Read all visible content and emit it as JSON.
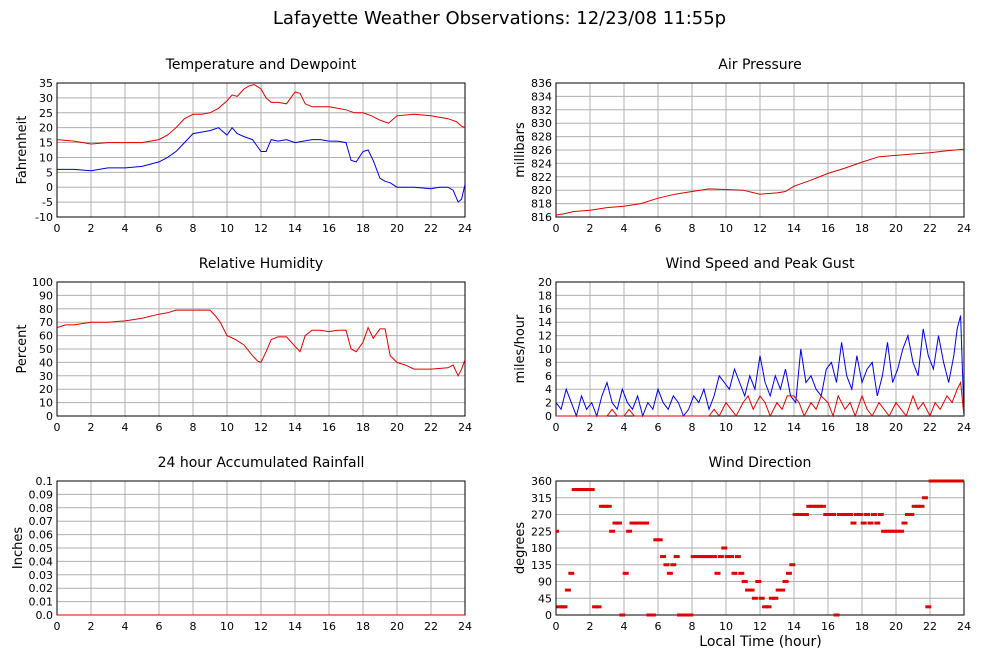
{
  "page": {
    "title": "Lafayette Weather Observations: 12/23/08 11:55p",
    "x_axis_label": "Local Time (hour)"
  },
  "colors": {
    "red": "#e00000",
    "blue": "#0000e0",
    "grid": "#b0b0b0"
  },
  "chart_data": [
    {
      "id": "temperature-dewpoint",
      "type": "line",
      "title": "Temperature and Dewpoint",
      "ylabel": "Fahrenheit",
      "xlim": [
        0,
        24
      ],
      "ylim": [
        -10,
        35
      ],
      "xticks": [
        0,
        2,
        4,
        6,
        8,
        10,
        12,
        14,
        16,
        18,
        20,
        22,
        24
      ],
      "yticks": [
        -10,
        -5,
        0,
        5,
        10,
        15,
        20,
        25,
        30,
        35
      ],
      "grid": true,
      "series": [
        {
          "color": "red",
          "x": [
            0,
            1,
            2,
            3,
            4,
            5,
            6,
            6.5,
            7,
            7.5,
            8,
            8.5,
            9,
            9.5,
            10,
            10.3,
            10.6,
            11,
            11.3,
            11.6,
            12,
            12.3,
            12.6,
            13,
            13.5,
            14,
            14.3,
            14.6,
            15,
            15.5,
            16,
            16.5,
            17,
            17.5,
            18,
            18.5,
            19,
            19.5,
            20,
            21,
            22,
            22.5,
            23,
            23.5,
            23.8,
            24
          ],
          "y": [
            16,
            15.5,
            14.5,
            15,
            15,
            15,
            16,
            17.5,
            20,
            23,
            24.5,
            24.5,
            25,
            26.5,
            29,
            31,
            30.5,
            33,
            34,
            34.5,
            33,
            30,
            28.5,
            28.5,
            28,
            32,
            31.5,
            28,
            27,
            27,
            27,
            26.5,
            26,
            25,
            25,
            24,
            22.5,
            21.5,
            24,
            24.5,
            24,
            23.5,
            23,
            22,
            20.5,
            20
          ]
        },
        {
          "color": "blue",
          "x": [
            0,
            1,
            2,
            3,
            4,
            5,
            6,
            6.5,
            7,
            7.5,
            8,
            8.5,
            9,
            9.5,
            10,
            10.3,
            10.6,
            11,
            11.5,
            12,
            12.3,
            12.6,
            13,
            13.5,
            14,
            14.5,
            15,
            15.5,
            16,
            16.5,
            17,
            17.3,
            17.6,
            18,
            18.3,
            18.6,
            19,
            19.3,
            19.6,
            20,
            21,
            22,
            22.5,
            23,
            23.3,
            23.6,
            23.8,
            24
          ],
          "y": [
            6,
            6,
            5.5,
            6.5,
            6.5,
            7,
            8.5,
            10,
            12,
            15,
            18,
            18.5,
            19,
            20,
            17.5,
            20,
            18,
            17,
            16,
            12,
            12,
            16,
            15.5,
            16,
            15,
            15.5,
            16,
            16,
            15.5,
            15.5,
            15,
            9,
            8.5,
            12,
            12.5,
            9,
            3,
            2,
            1.5,
            0,
            0,
            -0.5,
            0,
            0,
            -1,
            -5,
            -4,
            1
          ]
        }
      ]
    },
    {
      "id": "air-pressure",
      "type": "line",
      "title": "Air Pressure",
      "ylabel": "millibars",
      "xlim": [
        0,
        24
      ],
      "ylim": [
        816,
        836
      ],
      "xticks": [
        0,
        2,
        4,
        6,
        8,
        10,
        12,
        14,
        16,
        18,
        20,
        22,
        24
      ],
      "yticks": [
        816,
        818,
        820,
        822,
        824,
        826,
        828,
        830,
        832,
        834,
        836
      ],
      "grid": true,
      "series": [
        {
          "color": "red",
          "x": [
            0,
            0.5,
            1,
            2,
            3,
            4,
            5,
            6,
            7,
            8,
            9,
            10,
            11,
            12,
            13,
            13.5,
            14,
            15,
            16,
            17,
            18,
            19,
            20,
            21,
            22,
            23,
            24
          ],
          "y": [
            816.3,
            816.5,
            816.8,
            817,
            817.4,
            817.6,
            818,
            818.8,
            819.4,
            819.8,
            820.2,
            820.1,
            820,
            819.4,
            819.6,
            819.8,
            820.6,
            821.5,
            822.5,
            823.3,
            824.2,
            825,
            825.2,
            825.4,
            825.6,
            825.9,
            826.1
          ]
        }
      ]
    },
    {
      "id": "relative-humidity",
      "type": "line",
      "title": "Relative Humidity",
      "ylabel": "Percent",
      "xlim": [
        0,
        24
      ],
      "ylim": [
        0,
        100
      ],
      "xticks": [
        0,
        2,
        4,
        6,
        8,
        10,
        12,
        14,
        16,
        18,
        20,
        22,
        24
      ],
      "yticks": [
        0,
        10,
        20,
        30,
        40,
        50,
        60,
        70,
        80,
        90,
        100
      ],
      "grid": true,
      "series": [
        {
          "color": "red",
          "x": [
            0,
            0.5,
            1,
            2,
            3,
            4,
            5,
            6,
            6.5,
            7,
            7.5,
            8,
            8.5,
            9,
            9.3,
            9.6,
            10,
            10.5,
            11,
            11.5,
            11.8,
            12,
            12.3,
            12.6,
            13,
            13.5,
            14,
            14.3,
            14.6,
            15,
            15.5,
            16,
            16.5,
            17,
            17.3,
            17.6,
            18,
            18.3,
            18.6,
            19,
            19.3,
            19.6,
            20,
            20.5,
            21,
            22,
            23,
            23.3,
            23.6,
            23.8,
            24
          ],
          "y": [
            66,
            68,
            68,
            70,
            70,
            71,
            73,
            76,
            77,
            79,
            79,
            79,
            79,
            79,
            75,
            70,
            60,
            57,
            53,
            45,
            41,
            40,
            48,
            57,
            59,
            59,
            52,
            48,
            60,
            64,
            64,
            63,
            64,
            64,
            50,
            48,
            55,
            66,
            58,
            65,
            65,
            45,
            40,
            38,
            35,
            35,
            36,
            38,
            30,
            35,
            42
          ]
        }
      ]
    },
    {
      "id": "wind-speed-gust",
      "type": "line",
      "title": "Wind Speed and Peak Gust",
      "ylabel": "miles/hour",
      "xlim": [
        0,
        24
      ],
      "ylim": [
        0,
        20
      ],
      "xticks": [
        0,
        2,
        4,
        6,
        8,
        10,
        12,
        14,
        16,
        18,
        20,
        22,
        24
      ],
      "yticks": [
        0,
        2,
        4,
        6,
        8,
        10,
        12,
        14,
        16,
        18,
        20
      ],
      "grid": true,
      "series": [
        {
          "color": "blue",
          "x": [
            0,
            0.3,
            0.6,
            0.9,
            1.2,
            1.5,
            1.8,
            2.1,
            2.4,
            2.7,
            3,
            3.3,
            3.6,
            3.9,
            4.2,
            4.5,
            4.8,
            5.1,
            5.4,
            5.7,
            6,
            6.3,
            6.6,
            6.9,
            7.2,
            7.5,
            7.8,
            8.1,
            8.4,
            8.7,
            9,
            9.3,
            9.6,
            9.9,
            10.2,
            10.5,
            10.8,
            11.1,
            11.4,
            11.7,
            12,
            12.3,
            12.6,
            12.9,
            13.2,
            13.5,
            13.8,
            14.1,
            14.4,
            14.7,
            15,
            15.3,
            15.6,
            15.9,
            16.2,
            16.5,
            16.8,
            17.1,
            17.4,
            17.7,
            18,
            18.3,
            18.6,
            18.9,
            19.2,
            19.5,
            19.8,
            20.1,
            20.4,
            20.7,
            21,
            21.3,
            21.6,
            21.9,
            22.2,
            22.5,
            22.8,
            23.1,
            23.4,
            23.6,
            23.8,
            24
          ],
          "y": [
            2,
            1,
            4,
            2,
            0,
            3,
            1,
            2,
            0,
            3,
            5,
            2,
            1,
            4,
            2,
            1,
            3,
            0,
            2,
            1,
            4,
            2,
            1,
            3,
            2,
            0,
            1,
            3,
            2,
            4,
            1,
            3,
            6,
            5,
            4,
            7,
            5,
            3,
            6,
            4,
            9,
            5,
            3,
            6,
            4,
            7,
            3,
            2,
            10,
            5,
            6,
            4,
            3,
            7,
            8,
            5,
            11,
            6,
            4,
            9,
            5,
            7,
            8,
            3,
            6,
            11,
            5,
            7,
            10,
            12,
            8,
            6,
            13,
            9,
            7,
            12,
            8,
            5,
            9,
            13,
            15,
            0
          ]
        },
        {
          "color": "red",
          "x": [
            0,
            1,
            2,
            3,
            3.3,
            3.6,
            4,
            4.3,
            4.6,
            5,
            6,
            7,
            8,
            9,
            9.3,
            9.6,
            10,
            10.3,
            10.6,
            11,
            11.3,
            11.6,
            12,
            12.3,
            12.6,
            13,
            13.3,
            13.6,
            14,
            14.3,
            14.6,
            15,
            15.3,
            15.6,
            16,
            16.3,
            16.6,
            17,
            17.3,
            17.6,
            18,
            18.3,
            18.6,
            19,
            19.3,
            19.6,
            20,
            20.3,
            20.6,
            21,
            21.3,
            21.6,
            22,
            22.3,
            22.6,
            23,
            23.3,
            23.6,
            23.8,
            24
          ],
          "y": [
            0,
            0,
            0,
            0,
            1,
            0,
            0,
            1,
            0,
            0,
            0,
            0,
            0,
            0,
            1,
            0,
            2,
            1,
            0,
            2,
            3,
            1,
            3,
            2,
            0,
            2,
            1,
            3,
            3,
            2,
            0,
            2,
            1,
            3,
            2,
            0,
            3,
            1,
            2,
            0,
            3,
            1,
            0,
            2,
            1,
            0,
            2,
            1,
            0,
            3,
            1,
            2,
            0,
            2,
            1,
            3,
            2,
            4,
            5,
            0
          ]
        }
      ]
    },
    {
      "id": "rainfall",
      "type": "line",
      "title": "24 hour Accumulated Rainfall",
      "ylabel": "Inches",
      "xlim": [
        0,
        24
      ],
      "ylim": [
        0,
        0.1
      ],
      "xticks": [
        0,
        2,
        4,
        6,
        8,
        10,
        12,
        14,
        16,
        18,
        20,
        22,
        24
      ],
      "yticks": [
        "0.0",
        "0.01",
        "0.02",
        "0.03",
        "0.04",
        "0.05",
        "0.06",
        "0.07",
        "0.08",
        "0.09",
        "0.1"
      ],
      "grid": true,
      "series": [
        {
          "color": "red",
          "x": [
            0,
            24
          ],
          "y": [
            0,
            0
          ]
        }
      ]
    },
    {
      "id": "wind-direction",
      "type": "scatter",
      "title": "Wind Direction",
      "ylabel": "degrees",
      "xlim": [
        0,
        24
      ],
      "ylim": [
        0,
        360
      ],
      "xticks": [
        0,
        2,
        4,
        6,
        8,
        10,
        12,
        14,
        16,
        18,
        20,
        22,
        24
      ],
      "yticks": [
        0,
        45,
        90,
        135,
        180,
        225,
        270,
        315,
        360
      ],
      "grid": true,
      "series": [
        {
          "color": "red",
          "x": [
            0,
            0.2,
            0.4,
            0.5,
            0.7,
            0.9,
            1.1,
            1.3,
            1.5,
            1.7,
            1.9,
            2.1,
            2.3,
            2.5,
            2.7,
            2.9,
            3.1,
            3.3,
            3.5,
            3.7,
            3.9,
            4.1,
            4.3,
            4.5,
            4.7,
            4.9,
            5.1,
            5.3,
            5.5,
            5.7,
            5.9,
            6.1,
            6.3,
            6.5,
            6.7,
            6.9,
            7.1,
            7.3,
            7.5,
            7.7,
            7.9,
            8.1,
            8.3,
            8.5,
            8.7,
            8.9,
            9.1,
            9.3,
            9.5,
            9.7,
            9.9,
            10.1,
            10.3,
            10.5,
            10.7,
            10.9,
            11.1,
            11.3,
            11.5,
            11.7,
            11.9,
            12.1,
            12.3,
            12.5,
            12.7,
            12.9,
            13.1,
            13.3,
            13.5,
            13.7,
            13.9,
            14.1,
            14.3,
            14.5,
            14.7,
            14.9,
            15.1,
            15.3,
            15.5,
            15.7,
            15.9,
            16.1,
            16.3,
            16.5,
            16.7,
            16.9,
            17.1,
            17.3,
            17.5,
            17.7,
            17.9,
            18.1,
            18.3,
            18.5,
            18.7,
            18.9,
            19.1,
            19.3,
            19.5,
            19.7,
            19.9,
            20.1,
            20.3,
            20.5,
            20.7,
            20.9,
            21.1,
            21.3,
            21.5,
            21.7,
            21.9,
            22.1,
            22.3,
            22.5,
            22.7,
            22.9,
            23.1,
            23.3,
            23.5,
            23.7,
            23.9
          ],
          "y": [
            225,
            22,
            22,
            22,
            67,
            112,
            337,
            337,
            337,
            337,
            337,
            337,
            22,
            22,
            292,
            292,
            292,
            225,
            247,
            247,
            0,
            112,
            225,
            247,
            247,
            247,
            247,
            247,
            0,
            0,
            202,
            202,
            157,
            135,
            112,
            135,
            157,
            0,
            0,
            0,
            0,
            157,
            157,
            157,
            157,
            157,
            157,
            157,
            112,
            157,
            180,
            157,
            157,
            112,
            157,
            112,
            90,
            67,
            67,
            45,
            90,
            45,
            22,
            22,
            45,
            45,
            67,
            67,
            90,
            112,
            135,
            270,
            270,
            270,
            270,
            292,
            292,
            292,
            292,
            292,
            270,
            270,
            270,
            0,
            270,
            270,
            270,
            270,
            247,
            270,
            270,
            247,
            270,
            247,
            270,
            247,
            270,
            225,
            225,
            225,
            225,
            225,
            225,
            247,
            270,
            270,
            292,
            292,
            292,
            315,
            22,
            360,
            360,
            360,
            360,
            360,
            360,
            360,
            360,
            360,
            360
          ]
        }
      ]
    }
  ]
}
